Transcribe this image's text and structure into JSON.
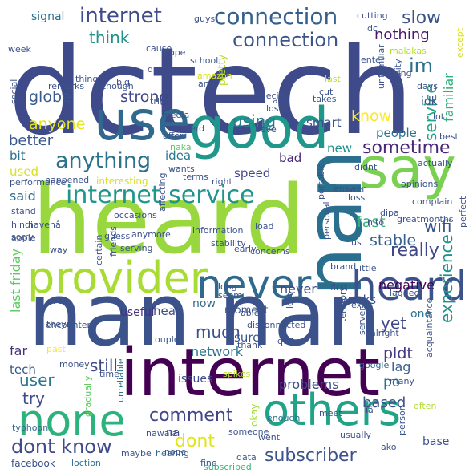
{
  "palette": {
    "dark_purple": "#440154",
    "indigo": "#3b528b",
    "teal": "#21918c",
    "green": "#35b779",
    "lime": "#90d743",
    "yellow": "#fde725"
  },
  "words": [
    {
      "text": "dctech",
      "color": "#3e4a89"
    },
    {
      "text": "heard",
      "color": "#98d83e"
    },
    {
      "text": "nan nan",
      "color": "#3b528b"
    },
    {
      "text": "internet",
      "color": "#440154"
    },
    {
      "text": "nan",
      "color": "#2b6f8e"
    },
    {
      "text": "say",
      "color": "#7ad151"
    },
    {
      "text": "good",
      "color": "#1f978b"
    },
    {
      "text": "use",
      "color": "#31688e"
    },
    {
      "text": "provider",
      "color": "#a8db34"
    },
    {
      "text": "never",
      "color": "#30698e"
    },
    {
      "text": "heard",
      "color": "#3b528b"
    },
    {
      "text": "none",
      "color": "#2db27d"
    },
    {
      "text": "others",
      "color": "#20a386"
    },
    {
      "text": "internet service",
      "color": "#1f958b"
    },
    {
      "text": "connection",
      "color": "#355f8d"
    },
    {
      "text": "internet",
      "color": "#3e4c8a"
    },
    {
      "text": "connection",
      "color": "#39558c"
    },
    {
      "text": "anything",
      "color": "#2c728e"
    },
    {
      "text": "dont know",
      "color": "#3e4a89"
    },
    {
      "text": "subscriber",
      "color": "#3b528b"
    },
    {
      "text": "comment",
      "color": "#404688"
    },
    {
      "text": "experience",
      "color": "#21918c"
    },
    {
      "text": "really",
      "color": "#404688"
    },
    {
      "text": "sometime",
      "color": "#482677"
    },
    {
      "text": "slow",
      "color": "#3a538b"
    },
    {
      "text": "im",
      "color": "#2d708e"
    },
    {
      "text": "dont",
      "color": "#e2e418"
    },
    {
      "text": "think",
      "color": "#21918c"
    },
    {
      "text": "strong",
      "color": "#404688"
    },
    {
      "text": "globe",
      "color": "#38598c"
    },
    {
      "text": "anyone",
      "color": "#e5e419"
    },
    {
      "text": "better",
      "color": "#38588c"
    },
    {
      "text": "using",
      "color": "#2a788e"
    },
    {
      "text": "know",
      "color": "#fde725"
    },
    {
      "text": "service",
      "color": "#21a685"
    },
    {
      "text": "familiar",
      "color": "#2db27d"
    },
    {
      "text": "nothing",
      "color": "#481769"
    },
    {
      "text": "wifi",
      "color": "#3a538b"
    },
    {
      "text": "fast",
      "color": "#35b779"
    },
    {
      "text": "stable",
      "color": "#355f8d"
    },
    {
      "text": "yet",
      "color": "#3f4889"
    },
    {
      "text": "pldt",
      "color": "#443983"
    },
    {
      "text": "much",
      "color": "#3b528b"
    },
    {
      "text": "still",
      "color": "#3e4989"
    },
    {
      "text": "user",
      "color": "#2a788e"
    },
    {
      "text": "try",
      "color": "#3e4a89"
    },
    {
      "text": "last friday",
      "color": "#5ec962"
    },
    {
      "text": "network",
      "color": "#2c728e"
    },
    {
      "text": "based",
      "color": "#3b528b"
    },
    {
      "text": "po",
      "color": "#2d708e"
    },
    {
      "text": "lag",
      "color": "#355f8d"
    },
    {
      "text": "problems",
      "color": "#3e4a89"
    },
    {
      "text": "negative",
      "color": "#440154"
    },
    {
      "text": "bad",
      "color": "#482878"
    },
    {
      "text": "said",
      "color": "#2e6e8e"
    },
    {
      "text": "new",
      "color": "#21918c"
    },
    {
      "text": "people",
      "color": "#2c728e"
    },
    {
      "text": "smart",
      "color": "#3b528b"
    },
    {
      "text": "idea",
      "color": "#2a788e"
    },
    {
      "text": "speed",
      "color": "#3f4889"
    },
    {
      "text": "hear",
      "color": "#3e4c8a"
    },
    {
      "text": "used",
      "color": "#d8e219"
    },
    {
      "text": "bit",
      "color": "#2c728e"
    },
    {
      "text": "works",
      "color": "#3b528b"
    },
    {
      "text": "never",
      "color": "#3e4989"
    },
    {
      "text": "far",
      "color": "#46337e"
    },
    {
      "text": "sure",
      "color": "#3b528b"
    },
    {
      "text": "tech",
      "color": "#38598c"
    },
    {
      "text": "now",
      "color": "#31688e"
    },
    {
      "text": "okay",
      "color": "#a2da37"
    },
    {
      "text": "na",
      "color": "#3e4a89"
    },
    {
      "text": "google",
      "color": "#31688e"
    },
    {
      "text": "one",
      "color": "#2c728e"
    },
    {
      "text": "idk",
      "color": "#3b528b"
    },
    {
      "text": "signal",
      "color": "#2c728e"
    },
    {
      "text": "moment",
      "color": "#3b528b"
    },
    {
      "text": "useful",
      "color": "#46337e"
    },
    {
      "text": "issues",
      "color": "#3e4a89"
    },
    {
      "text": "base",
      "color": "#3b528b"
    },
    {
      "text": "facebook",
      "color": "#3b528b"
    },
    {
      "text": "loction",
      "color": "#2c728e"
    },
    {
      "text": "hearing",
      "color": "#2d708e"
    },
    {
      "text": "fine",
      "color": "#3b528b"
    },
    {
      "text": "subscribed",
      "color": "#35b779"
    },
    {
      "text": "data",
      "color": "#3b528b"
    },
    {
      "text": "went",
      "color": "#3b528b"
    },
    {
      "text": "ako",
      "color": "#3b528b"
    },
    {
      "text": "iâ",
      "color": "#3e4a89"
    },
    {
      "text": "many",
      "color": "#3b528b"
    },
    {
      "text": "often",
      "color": "#b5de2b"
    },
    {
      "text": "usually",
      "color": "#3b528b"
    },
    {
      "text": "meet",
      "color": "#3b528b"
    },
    {
      "text": "enough",
      "color": "#2c728e"
    },
    {
      "text": "time",
      "color": "#3b528b"
    },
    {
      "text": "nawala",
      "color": "#3b528b"
    },
    {
      "text": "nope",
      "color": "#3b528b"
    },
    {
      "text": "maybe",
      "color": "#3b528b"
    },
    {
      "text": "typhoon",
      "color": "#31688e"
    },
    {
      "text": "gradually",
      "color": "#5ec962"
    },
    {
      "text": "money",
      "color": "#3b528b"
    },
    {
      "text": "unreliable",
      "color": "#2c728e"
    },
    {
      "text": "spikes",
      "color": "#b5de2b"
    },
    {
      "text": "even",
      "color": "#3b528b"
    },
    {
      "text": "past",
      "color": "#fde725"
    },
    {
      "text": "theyre",
      "color": "#3b528b"
    },
    {
      "text": "encounter",
      "color": "#3b528b"
    },
    {
      "text": "way",
      "color": "#3b528b"
    },
    {
      "text": "apple",
      "color": "#3b528b"
    },
    {
      "text": "sorry",
      "color": "#3b528b"
    },
    {
      "text": "hindi",
      "color": "#3b528b"
    },
    {
      "text": "havenâ",
      "color": "#3b528b"
    },
    {
      "text": "stand",
      "color": "#3b528b"
    },
    {
      "text": "happened",
      "color": "#3b528b"
    },
    {
      "text": "interesting",
      "color": "#d8e219"
    },
    {
      "text": "terms",
      "color": "#3b528b"
    },
    {
      "text": "right",
      "color": "#3b528b"
    },
    {
      "text": "wants",
      "color": "#3b528b"
    },
    {
      "text": "naka",
      "color": "#5ec962"
    },
    {
      "text": "offer",
      "color": "#3b528b"
    },
    {
      "text": "herd",
      "color": "#3b528b"
    },
    {
      "text": "seve",
      "color": "#3b528b"
    },
    {
      "text": "lose",
      "color": "#3b528b"
    },
    {
      "text": "ave",
      "color": "#3b528b"
    },
    {
      "text": "media",
      "color": "#3b528b"
    },
    {
      "text": "ang",
      "color": "#3b528b"
    },
    {
      "text": "amazon",
      "color": "#d8e219"
    },
    {
      "text": "tried",
      "color": "#3b528b"
    },
    {
      "text": "specific",
      "color": "#3b528b"
    },
    {
      "text": "pretty",
      "color": "#b5de2b"
    },
    {
      "text": "cut",
      "color": "#3b528b"
    },
    {
      "text": "last",
      "color": "#b5de2b"
    },
    {
      "text": "takes",
      "color": "#3b528b"
    },
    {
      "text": "working",
      "color": "#3b528b"
    },
    {
      "text": "quality",
      "color": "#3b528b"
    },
    {
      "text": "unfamiliar",
      "color": "#3b528b"
    },
    {
      "text": "enter",
      "color": "#3b528b"
    },
    {
      "text": "cutting",
      "color": "#3b528b"
    },
    {
      "text": "dc",
      "color": "#3b528b"
    },
    {
      "text": "malakas",
      "color": "#b5de2b"
    },
    {
      "text": "days",
      "color": "#3b528b"
    },
    {
      "text": "except",
      "color": "#d8e219"
    },
    {
      "text": "lot",
      "color": "#3b528b"
    },
    {
      "text": "best",
      "color": "#3b528b"
    },
    {
      "text": "actually",
      "color": "#3b528b"
    },
    {
      "text": "complain",
      "color": "#3b528b"
    },
    {
      "text": "opinions",
      "color": "#3b528b"
    },
    {
      "text": "didnt",
      "color": "#3b528b"
    },
    {
      "text": "answer",
      "color": "#3b528b"
    },
    {
      "text": "portable",
      "color": "#3b528b"
    },
    {
      "text": "loss",
      "color": "#3b528b"
    },
    {
      "text": "greatmonths",
      "color": "#3b528b"
    },
    {
      "text": "dipa",
      "color": "#3b528b"
    },
    {
      "text": "nito",
      "color": "#3b528b"
    },
    {
      "text": "personal",
      "color": "#3b528b"
    },
    {
      "text": "perfect",
      "color": "#3b528b"
    },
    {
      "text": "us",
      "color": "#3b528b"
    },
    {
      "text": "little",
      "color": "#3b528b"
    },
    {
      "text": "brand",
      "color": "#3b528b"
    },
    {
      "text": "first",
      "color": "#3b528b"
    },
    {
      "text": "lagged",
      "color": "#3b528b"
    },
    {
      "text": "exist",
      "color": "#3b528b"
    },
    {
      "text": "territory",
      "color": "#3b528b"
    },
    {
      "text": "server",
      "color": "#3b528b"
    },
    {
      "text": "alright",
      "color": "#3b528b"
    },
    {
      "text": "acquaintance",
      "color": "#3b528b"
    },
    {
      "text": "person",
      "color": "#3b528b"
    },
    {
      "text": "quite",
      "color": "#3b528b"
    },
    {
      "text": "thank",
      "color": "#3b528b"
    },
    {
      "text": "lost",
      "color": "#3b528b"
    },
    {
      "text": "disconnected",
      "color": "#3b528b"
    },
    {
      "text": "able",
      "color": "#3b528b"
    },
    {
      "text": "seem",
      "color": "#3b528b"
    },
    {
      "text": "long",
      "color": "#3b528b"
    },
    {
      "text": "couple",
      "color": "#3b528b"
    },
    {
      "text": "concerns",
      "color": "#3b528b"
    },
    {
      "text": "early",
      "color": "#3b528b"
    },
    {
      "text": "load",
      "color": "#3b528b"
    },
    {
      "text": "stability",
      "color": "#3b528b"
    },
    {
      "text": "information",
      "color": "#3b528b"
    },
    {
      "text": "affecting",
      "color": "#3b528b"
    },
    {
      "text": "friends",
      "color": "#3b528b"
    },
    {
      "text": "certain",
      "color": "#3b528b"
    },
    {
      "text": "occasions",
      "color": "#3b528b"
    },
    {
      "text": "guess",
      "color": "#3b528b"
    },
    {
      "text": "anymore",
      "color": "#3b528b"
    },
    {
      "text": "performance",
      "color": "#3b528b"
    },
    {
      "text": "serving",
      "color": "#3b528b"
    },
    {
      "text": "social",
      "color": "#3b528b"
    },
    {
      "text": "although",
      "color": "#3b528b"
    },
    {
      "text": "remarks",
      "color": "#3b528b"
    },
    {
      "text": "thing",
      "color": "#3b528b"
    },
    {
      "text": "big",
      "color": "#3b528b"
    },
    {
      "text": "dat",
      "color": "#3b528b"
    },
    {
      "text": "school",
      "color": "#3b528b"
    },
    {
      "text": "cause",
      "color": "#3b528b"
    },
    {
      "text": "hope",
      "color": "#3b528b"
    },
    {
      "text": "week",
      "color": "#3b528b"
    },
    {
      "text": "guys",
      "color": "#3b528b"
    },
    {
      "text": "someone",
      "color": "#3b528b"
    },
    {
      "text": "wi",
      "color": "#3b528b"
    },
    {
      "text": "raining",
      "color": "#3b528b"
    }
  ]
}
